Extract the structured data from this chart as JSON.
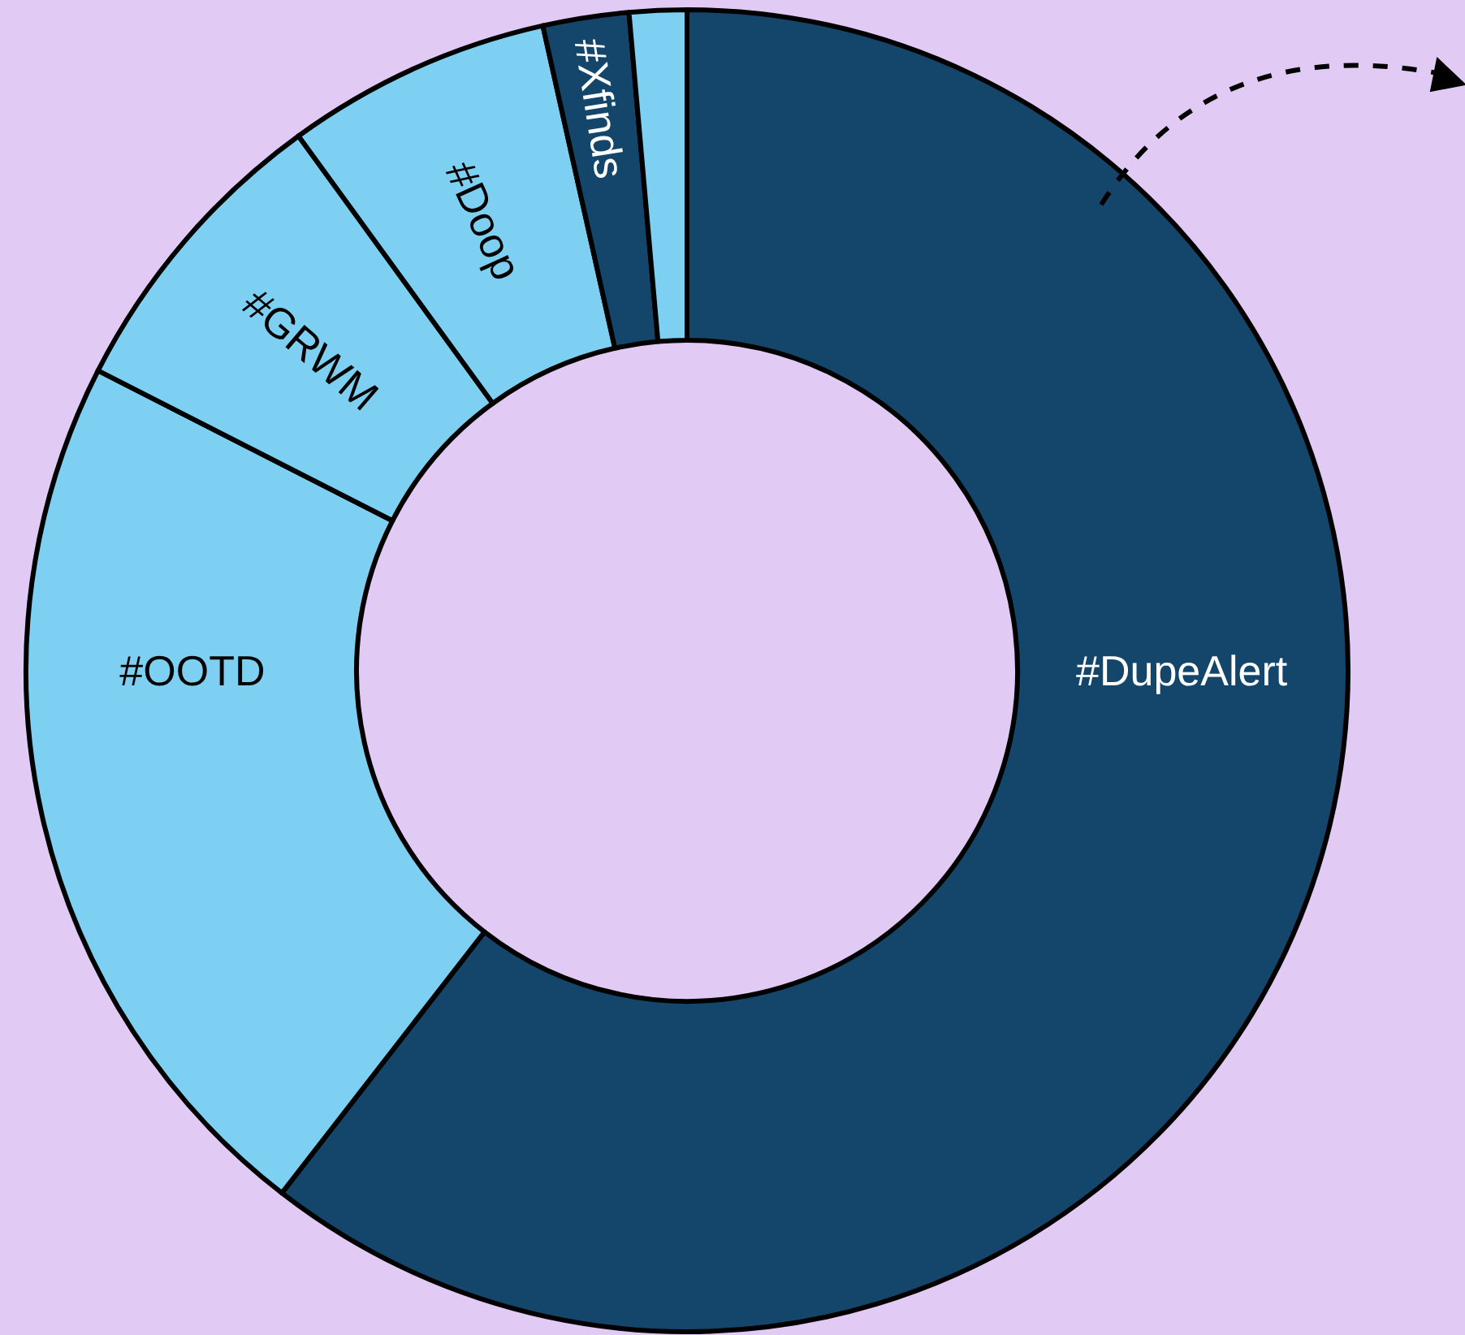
{
  "chart_data": {
    "type": "donut",
    "categories": [
      "#DupeAlert",
      "#OOTD",
      "#GRWM",
      "#Doop",
      "#Xfinds",
      null
    ],
    "values": [
      60.5,
      22,
      7.5,
      6.5,
      2.1,
      1.4
    ],
    "colors": [
      "#14466c",
      "#7dd0f2",
      "#7dd0f2",
      "#7dd0f2",
      "#14466c",
      "#7dd0f2"
    ],
    "legend": false
  }
}
